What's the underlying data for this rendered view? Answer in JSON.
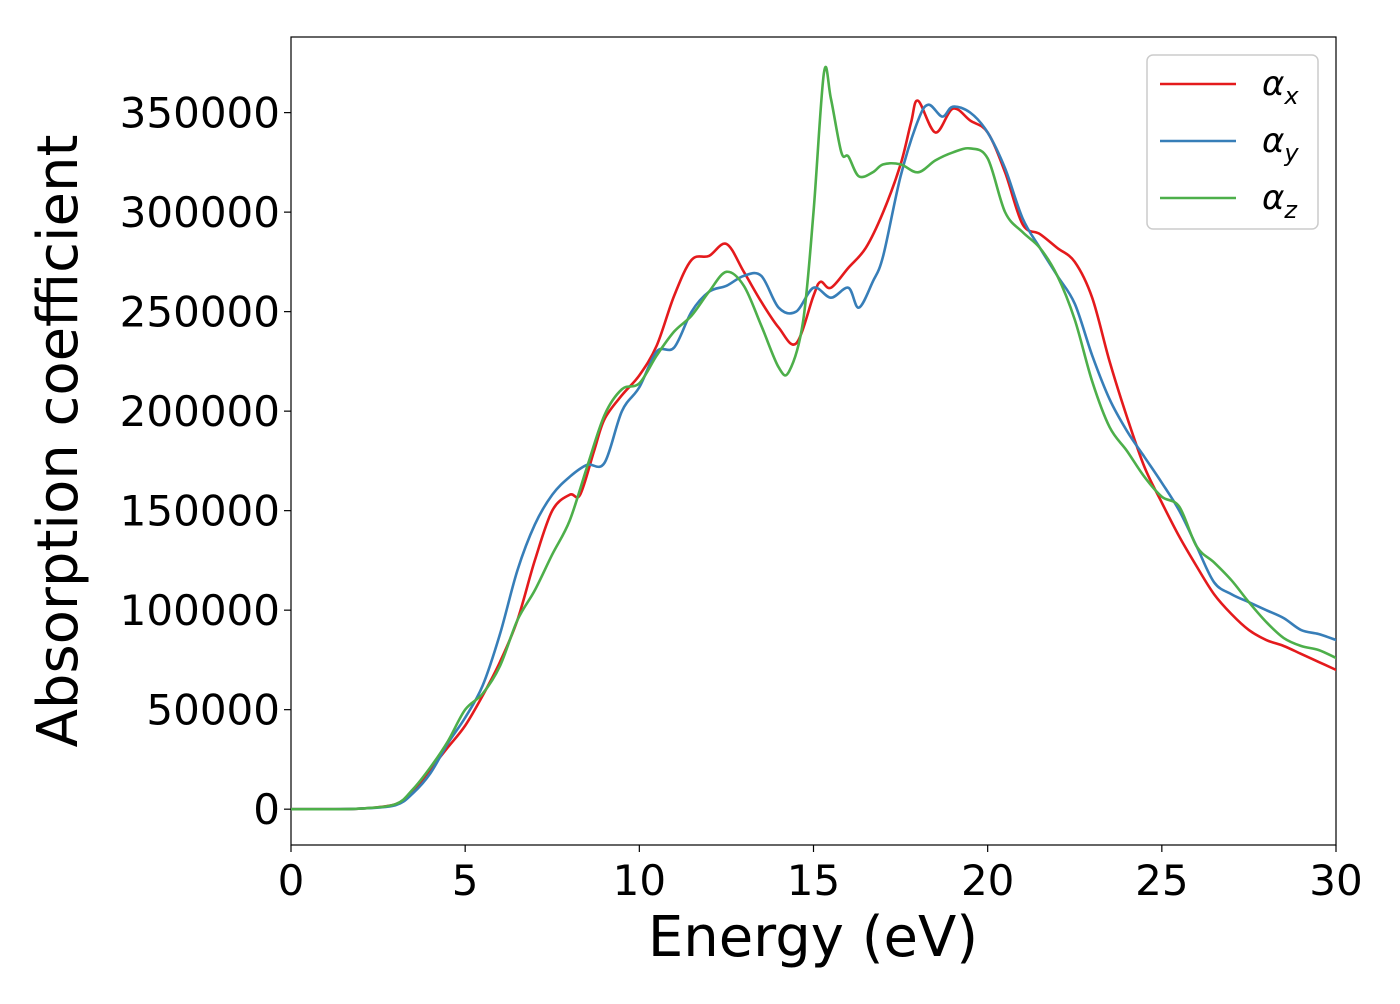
{
  "chart_data": {
    "type": "line",
    "title": "",
    "xlabel": "Energy (eV)",
    "ylabel": "Absorption coefficient",
    "xlim": [
      0,
      30
    ],
    "ylim": [
      -18000,
      388000
    ],
    "xticks": [
      0,
      5,
      10,
      15,
      20,
      25,
      30
    ],
    "yticks": [
      0,
      50000,
      100000,
      150000,
      200000,
      250000,
      300000,
      350000
    ],
    "grid": false,
    "legend_position": "top-right",
    "series": [
      {
        "name": "α_x",
        "label_base": "α",
        "label_sub": "x",
        "color": "#e41a1c",
        "points": [
          [
            0,
            0
          ],
          [
            1,
            0
          ],
          [
            2,
            300
          ],
          [
            3,
            2500
          ],
          [
            3.5,
            9000
          ],
          [
            4,
            20000
          ],
          [
            4.5,
            31000
          ],
          [
            5,
            42000
          ],
          [
            5.5,
            57000
          ],
          [
            6,
            74000
          ],
          [
            6.5,
            95000
          ],
          [
            7,
            125000
          ],
          [
            7.5,
            150000
          ],
          [
            8,
            158000
          ],
          [
            8.3,
            158000
          ],
          [
            8.7,
            180000
          ],
          [
            9,
            196000
          ],
          [
            9.5,
            208000
          ],
          [
            10,
            218000
          ],
          [
            10.5,
            233000
          ],
          [
            11,
            258000
          ],
          [
            11.5,
            276000
          ],
          [
            12,
            278000
          ],
          [
            12.5,
            284000
          ],
          [
            13,
            270000
          ],
          [
            13.5,
            255000
          ],
          [
            14,
            242000
          ],
          [
            14.5,
            234000
          ],
          [
            15,
            258000
          ],
          [
            15.2,
            265000
          ],
          [
            15.5,
            262000
          ],
          [
            16,
            272000
          ],
          [
            16.5,
            282000
          ],
          [
            17,
            300000
          ],
          [
            17.5,
            324000
          ],
          [
            17.8,
            345000
          ],
          [
            18,
            356000
          ],
          [
            18.5,
            340000
          ],
          [
            19,
            352000
          ],
          [
            19.5,
            346000
          ],
          [
            20,
            340000
          ],
          [
            20.5,
            320000
          ],
          [
            21,
            294000
          ],
          [
            21.5,
            289000
          ],
          [
            22,
            282000
          ],
          [
            22.5,
            275000
          ],
          [
            23,
            257000
          ],
          [
            23.5,
            225000
          ],
          [
            24,
            197000
          ],
          [
            24.5,
            172000
          ],
          [
            25,
            154000
          ],
          [
            25.5,
            137000
          ],
          [
            26,
            122000
          ],
          [
            26.5,
            108000
          ],
          [
            27,
            98000
          ],
          [
            27.5,
            90000
          ],
          [
            28,
            85000
          ],
          [
            28.5,
            82000
          ],
          [
            29,
            78000
          ],
          [
            29.5,
            74000
          ],
          [
            30,
            70000
          ]
        ]
      },
      {
        "name": "α_y",
        "label_base": "α",
        "label_sub": "y",
        "color": "#377eb8",
        "points": [
          [
            0,
            0
          ],
          [
            1,
            0
          ],
          [
            2,
            300
          ],
          [
            3,
            2000
          ],
          [
            3.5,
            8000
          ],
          [
            4,
            18000
          ],
          [
            4.5,
            33000
          ],
          [
            5,
            46000
          ],
          [
            5.5,
            62000
          ],
          [
            6,
            88000
          ],
          [
            6.5,
            120000
          ],
          [
            7,
            143000
          ],
          [
            7.5,
            158000
          ],
          [
            8,
            167000
          ],
          [
            8.5,
            173000
          ],
          [
            9,
            174000
          ],
          [
            9.5,
            200000
          ],
          [
            10,
            212000
          ],
          [
            10.5,
            230000
          ],
          [
            11,
            232000
          ],
          [
            11.5,
            250000
          ],
          [
            12,
            260000
          ],
          [
            12.5,
            263000
          ],
          [
            13,
            268000
          ],
          [
            13.5,
            268000
          ],
          [
            14,
            252000
          ],
          [
            14.5,
            250000
          ],
          [
            15,
            262000
          ],
          [
            15.5,
            257000
          ],
          [
            16,
            262000
          ],
          [
            16.3,
            252000
          ],
          [
            16.7,
            265000
          ],
          [
            17,
            278000
          ],
          [
            17.5,
            318000
          ],
          [
            18,
            346000
          ],
          [
            18.3,
            354000
          ],
          [
            18.7,
            348000
          ],
          [
            19,
            353000
          ],
          [
            19.5,
            350000
          ],
          [
            20,
            340000
          ],
          [
            20.5,
            322000
          ],
          [
            21,
            297000
          ],
          [
            21.5,
            282000
          ],
          [
            22,
            268000
          ],
          [
            22.5,
            254000
          ],
          [
            23,
            228000
          ],
          [
            23.5,
            206000
          ],
          [
            24,
            190000
          ],
          [
            24.5,
            177000
          ],
          [
            25,
            164000
          ],
          [
            25.5,
            150000
          ],
          [
            26,
            132000
          ],
          [
            26.5,
            114000
          ],
          [
            27,
            108000
          ],
          [
            27.5,
            104000
          ],
          [
            28,
            100000
          ],
          [
            28.5,
            96000
          ],
          [
            29,
            90000
          ],
          [
            29.5,
            88000
          ],
          [
            30,
            85000
          ]
        ]
      },
      {
        "name": "α_z",
        "label_base": "α",
        "label_sub": "z",
        "color": "#4daf4a",
        "points": [
          [
            0,
            0
          ],
          [
            1,
            0
          ],
          [
            2,
            300
          ],
          [
            3,
            2500
          ],
          [
            3.5,
            10000
          ],
          [
            4,
            21000
          ],
          [
            4.5,
            34000
          ],
          [
            5,
            50000
          ],
          [
            5.5,
            58000
          ],
          [
            6,
            72000
          ],
          [
            6.5,
            95000
          ],
          [
            7,
            110000
          ],
          [
            7.5,
            128000
          ],
          [
            8,
            145000
          ],
          [
            8.5,
            172000
          ],
          [
            9,
            198000
          ],
          [
            9.5,
            211000
          ],
          [
            10,
            214000
          ],
          [
            10.5,
            228000
          ],
          [
            11,
            240000
          ],
          [
            11.5,
            248000
          ],
          [
            12,
            260000
          ],
          [
            12.5,
            270000
          ],
          [
            13,
            263000
          ],
          [
            13.5,
            243000
          ],
          [
            14,
            222000
          ],
          [
            14.3,
            220000
          ],
          [
            14.7,
            245000
          ],
          [
            15,
            300000
          ],
          [
            15.3,
            370000
          ],
          [
            15.5,
            357000
          ],
          [
            15.8,
            330000
          ],
          [
            16,
            328000
          ],
          [
            16.3,
            318000
          ],
          [
            16.7,
            320000
          ],
          [
            17,
            324000
          ],
          [
            17.5,
            324000
          ],
          [
            18,
            320000
          ],
          [
            18.5,
            326000
          ],
          [
            19,
            330000
          ],
          [
            19.5,
            332000
          ],
          [
            20,
            327000
          ],
          [
            20.5,
            300000
          ],
          [
            21,
            290000
          ],
          [
            21.5,
            282000
          ],
          [
            22,
            268000
          ],
          [
            22.5,
            246000
          ],
          [
            23,
            215000
          ],
          [
            23.5,
            192000
          ],
          [
            24,
            180000
          ],
          [
            24.5,
            167000
          ],
          [
            25,
            157000
          ],
          [
            25.5,
            152000
          ],
          [
            26,
            132000
          ],
          [
            26.5,
            124000
          ],
          [
            27,
            115000
          ],
          [
            27.5,
            104000
          ],
          [
            28,
            94000
          ],
          [
            28.5,
            86000
          ],
          [
            29,
            82000
          ],
          [
            29.5,
            80000
          ],
          [
            30,
            76000
          ]
        ]
      }
    ]
  }
}
